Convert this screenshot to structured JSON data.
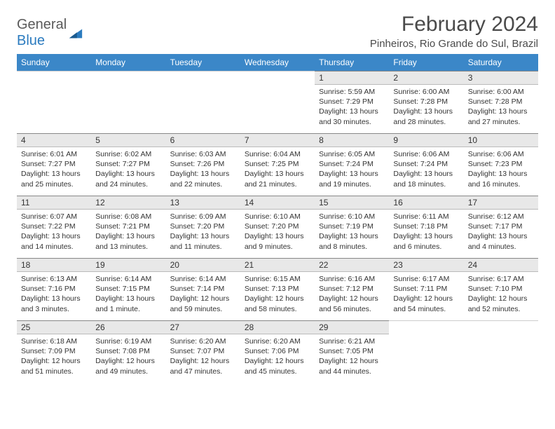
{
  "logo": {
    "text1": "General",
    "text2": "Blue",
    "icon_color": "#2b7bbf"
  },
  "title": "February 2024",
  "location": "Pinheiros, Rio Grande do Sul, Brazil",
  "colors": {
    "header_bg": "#3b87c8",
    "header_fg": "#ffffff",
    "daynum_bg": "#e8e8e8",
    "text": "#333333",
    "page_bg": "#ffffff"
  },
  "weekdays": [
    "Sunday",
    "Monday",
    "Tuesday",
    "Wednesday",
    "Thursday",
    "Friday",
    "Saturday"
  ],
  "weeks": [
    [
      null,
      null,
      null,
      null,
      {
        "n": "1",
        "sunrise": "5:59 AM",
        "sunset": "7:29 PM",
        "daylight": "13 hours and 30 minutes."
      },
      {
        "n": "2",
        "sunrise": "6:00 AM",
        "sunset": "7:28 PM",
        "daylight": "13 hours and 28 minutes."
      },
      {
        "n": "3",
        "sunrise": "6:00 AM",
        "sunset": "7:28 PM",
        "daylight": "13 hours and 27 minutes."
      }
    ],
    [
      {
        "n": "4",
        "sunrise": "6:01 AM",
        "sunset": "7:27 PM",
        "daylight": "13 hours and 25 minutes."
      },
      {
        "n": "5",
        "sunrise": "6:02 AM",
        "sunset": "7:27 PM",
        "daylight": "13 hours and 24 minutes."
      },
      {
        "n": "6",
        "sunrise": "6:03 AM",
        "sunset": "7:26 PM",
        "daylight": "13 hours and 22 minutes."
      },
      {
        "n": "7",
        "sunrise": "6:04 AM",
        "sunset": "7:25 PM",
        "daylight": "13 hours and 21 minutes."
      },
      {
        "n": "8",
        "sunrise": "6:05 AM",
        "sunset": "7:24 PM",
        "daylight": "13 hours and 19 minutes."
      },
      {
        "n": "9",
        "sunrise": "6:06 AM",
        "sunset": "7:24 PM",
        "daylight": "13 hours and 18 minutes."
      },
      {
        "n": "10",
        "sunrise": "6:06 AM",
        "sunset": "7:23 PM",
        "daylight": "13 hours and 16 minutes."
      }
    ],
    [
      {
        "n": "11",
        "sunrise": "6:07 AM",
        "sunset": "7:22 PM",
        "daylight": "13 hours and 14 minutes."
      },
      {
        "n": "12",
        "sunrise": "6:08 AM",
        "sunset": "7:21 PM",
        "daylight": "13 hours and 13 minutes."
      },
      {
        "n": "13",
        "sunrise": "6:09 AM",
        "sunset": "7:20 PM",
        "daylight": "13 hours and 11 minutes."
      },
      {
        "n": "14",
        "sunrise": "6:10 AM",
        "sunset": "7:20 PM",
        "daylight": "13 hours and 9 minutes."
      },
      {
        "n": "15",
        "sunrise": "6:10 AM",
        "sunset": "7:19 PM",
        "daylight": "13 hours and 8 minutes."
      },
      {
        "n": "16",
        "sunrise": "6:11 AM",
        "sunset": "7:18 PM",
        "daylight": "13 hours and 6 minutes."
      },
      {
        "n": "17",
        "sunrise": "6:12 AM",
        "sunset": "7:17 PM",
        "daylight": "13 hours and 4 minutes."
      }
    ],
    [
      {
        "n": "18",
        "sunrise": "6:13 AM",
        "sunset": "7:16 PM",
        "daylight": "13 hours and 3 minutes."
      },
      {
        "n": "19",
        "sunrise": "6:14 AM",
        "sunset": "7:15 PM",
        "daylight": "13 hours and 1 minute."
      },
      {
        "n": "20",
        "sunrise": "6:14 AM",
        "sunset": "7:14 PM",
        "daylight": "12 hours and 59 minutes."
      },
      {
        "n": "21",
        "sunrise": "6:15 AM",
        "sunset": "7:13 PM",
        "daylight": "12 hours and 58 minutes."
      },
      {
        "n": "22",
        "sunrise": "6:16 AM",
        "sunset": "7:12 PM",
        "daylight": "12 hours and 56 minutes."
      },
      {
        "n": "23",
        "sunrise": "6:17 AM",
        "sunset": "7:11 PM",
        "daylight": "12 hours and 54 minutes."
      },
      {
        "n": "24",
        "sunrise": "6:17 AM",
        "sunset": "7:10 PM",
        "daylight": "12 hours and 52 minutes."
      }
    ],
    [
      {
        "n": "25",
        "sunrise": "6:18 AM",
        "sunset": "7:09 PM",
        "daylight": "12 hours and 51 minutes."
      },
      {
        "n": "26",
        "sunrise": "6:19 AM",
        "sunset": "7:08 PM",
        "daylight": "12 hours and 49 minutes."
      },
      {
        "n": "27",
        "sunrise": "6:20 AM",
        "sunset": "7:07 PM",
        "daylight": "12 hours and 47 minutes."
      },
      {
        "n": "28",
        "sunrise": "6:20 AM",
        "sunset": "7:06 PM",
        "daylight": "12 hours and 45 minutes."
      },
      {
        "n": "29",
        "sunrise": "6:21 AM",
        "sunset": "7:05 PM",
        "daylight": "12 hours and 44 minutes."
      },
      null,
      null
    ]
  ],
  "labels": {
    "sunrise": "Sunrise: ",
    "sunset": "Sunset: ",
    "daylight": "Daylight: "
  }
}
